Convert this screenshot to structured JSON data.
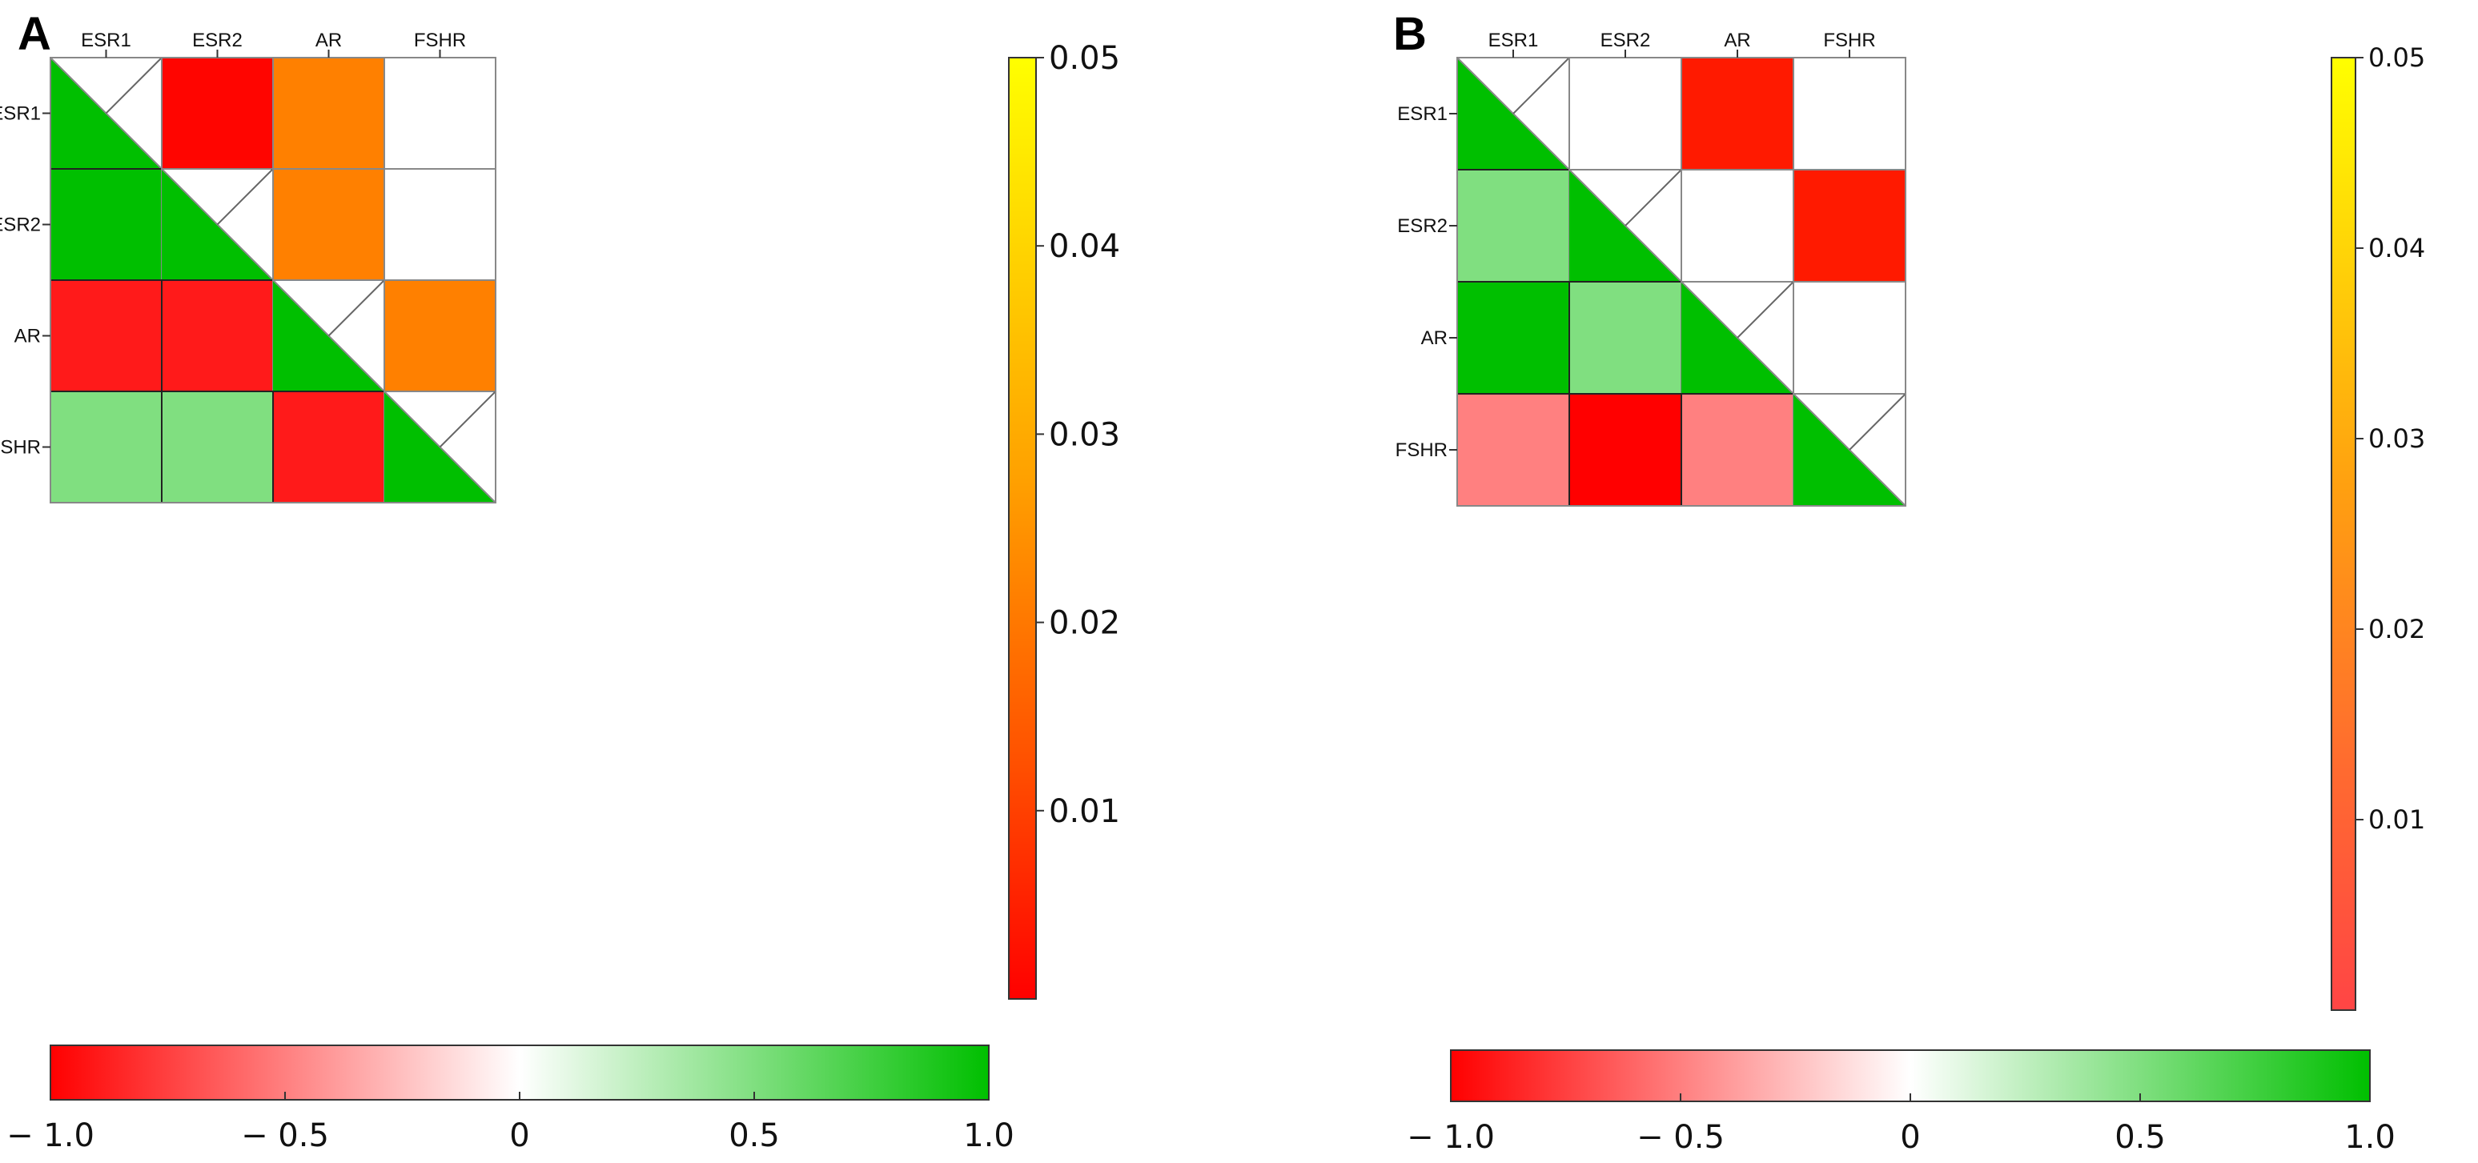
{
  "chart_data": [
    {
      "type": "heatmap",
      "panel": "A",
      "genes": [
        "ESR1",
        "ESR2",
        "AR",
        "FSHR"
      ],
      "lower_r": [
        [
          null,
          null,
          null,
          null
        ],
        [
          1.0,
          null,
          null,
          null
        ],
        [
          -0.9,
          -0.9,
          null,
          null
        ],
        [
          0.5,
          0.5,
          -0.9,
          null
        ]
      ],
      "upper_p": [
        [
          null,
          0.001,
          0.025,
          null
        ],
        [
          null,
          null,
          0.025,
          null
        ],
        [
          null,
          null,
          null,
          0.025
        ],
        [
          null,
          null,
          null,
          null
        ]
      ],
      "p_colorbar": {
        "ticks": [
          "0.05",
          "0.04",
          "0.03",
          "0.02",
          "0.01"
        ],
        "range": [
          0,
          0.05
        ]
      },
      "r_colorbar": {
        "ticks": [
          "− 1.0",
          "− 0.5",
          "0",
          "0.5",
          "1.0"
        ],
        "range": [
          -1.0,
          1.0
        ]
      }
    },
    {
      "type": "heatmap",
      "panel": "B",
      "genes": [
        "ESR1",
        "ESR2",
        "AR",
        "FSHR"
      ],
      "lower_r": [
        [
          null,
          null,
          null,
          null
        ],
        [
          0.5,
          null,
          null,
          null
        ],
        [
          1.0,
          0.5,
          null,
          null
        ],
        [
          -0.5,
          -1.0,
          -0.5,
          null
        ]
      ],
      "upper_p": [
        [
          null,
          null,
          0.005,
          null
        ],
        [
          null,
          null,
          null,
          0.005
        ],
        [
          null,
          null,
          null,
          null
        ],
        [
          null,
          null,
          null,
          null
        ]
      ],
      "p_colorbar": {
        "ticks": [
          "0.05",
          "0.04",
          "0.03",
          "0.02",
          "0.01"
        ],
        "range": [
          0,
          0.05
        ]
      },
      "r_colorbar": {
        "ticks": [
          "− 1.0",
          "− 0.5",
          "0",
          "0.5",
          "1.0"
        ],
        "range": [
          -1.0,
          1.0
        ]
      }
    }
  ],
  "colors": {
    "green": "#00bf00",
    "grid": "#333333",
    "p_top": "#ffff00",
    "p_mid": "#ff8000",
    "p_bottom": "#ff0000"
  }
}
